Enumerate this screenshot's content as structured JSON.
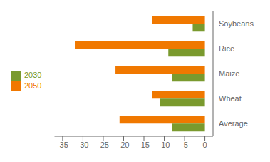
{
  "chart_data": {
    "type": "bar",
    "orientation": "horizontal",
    "categories": [
      "Average",
      "Wheat",
      "Maize",
      "Rice",
      "Soybeans"
    ],
    "series": [
      {
        "name": "2050",
        "color": "#F07800",
        "values": [
          -21,
          -13,
          -22,
          -32,
          -13
        ]
      },
      {
        "name": "2030",
        "color": "#7A9A2E",
        "values": [
          -8,
          -11,
          -8,
          -9,
          -3
        ]
      }
    ],
    "xlim": [
      -37,
      2
    ],
    "xticks": [
      -35,
      -30,
      -25,
      -20,
      -15,
      -10,
      -5,
      0
    ],
    "grid": false,
    "legend": "left"
  }
}
